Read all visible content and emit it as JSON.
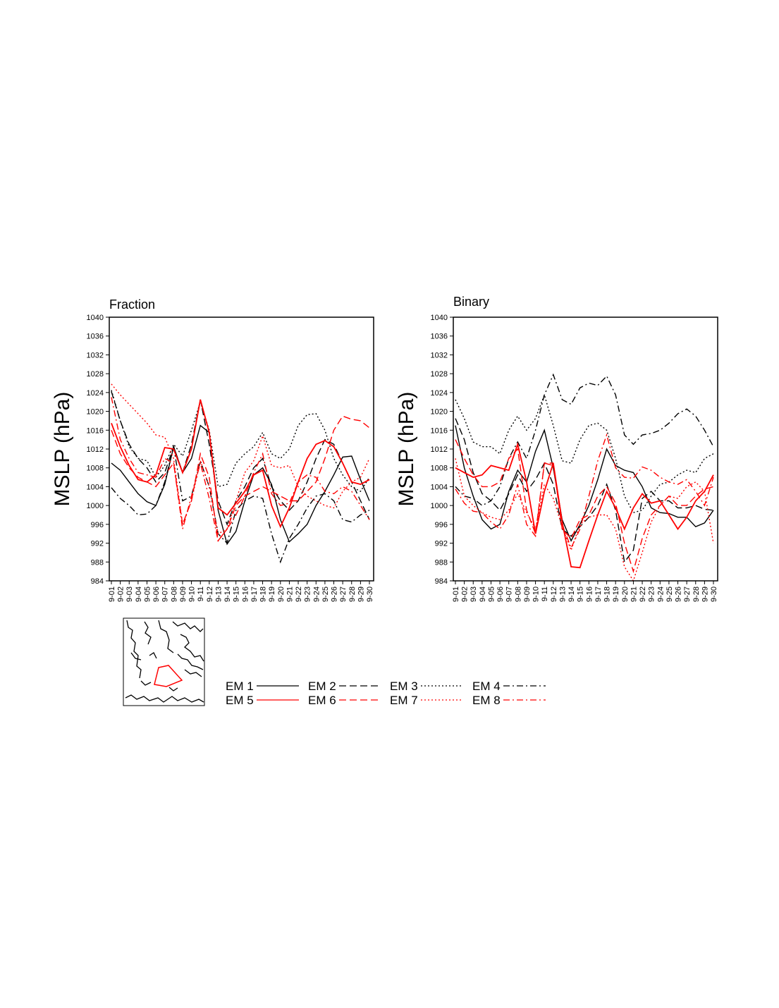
{
  "chart_data": [
    {
      "type": "line",
      "title": "Fraction",
      "ylabel": "MSLP (hPa)",
      "xlabel": "",
      "ylim": [
        984,
        1040
      ],
      "yticks": [
        984,
        988,
        992,
        996,
        1000,
        1004,
        1008,
        1012,
        1016,
        1020,
        1024,
        1028,
        1032,
        1036,
        1040
      ],
      "categories": [
        "9-01",
        "9-02",
        "9-03",
        "9-04",
        "9-05",
        "9-06",
        "9-07",
        "9-08",
        "9-09",
        "9-10",
        "9-11",
        "9-12",
        "9-13",
        "9-14",
        "9-15",
        "9-16",
        "9-17",
        "9-18",
        "9-19",
        "9-20",
        "9-21",
        "9-22",
        "9-23",
        "9-24",
        "9-25",
        "9-26",
        "9-27",
        "9-28",
        "9-29",
        "9-30"
      ],
      "grid": false,
      "series": [
        {
          "name": "EM 1",
          "values": [
            1009,
            1007.5,
            1005,
            1002.5,
            1000.8,
            1000,
            1004.5,
            1012.5,
            1007,
            1010,
            1017,
            1015.5,
            999,
            991.8,
            994.5,
            1001,
            1006.5,
            1008,
            1004.5,
            997,
            992.3,
            994,
            996,
            1000,
            1003,
            1006.5,
            1010.3,
            1010.5,
            1005.5,
            1001
          ]
        },
        {
          "name": "EM 2",
          "values": [
            1024.2,
            1018,
            1013,
            1010,
            1008,
            1005,
            1007,
            1012.5,
            1007,
            1013,
            1022.5,
            1013,
            1001,
            996,
            1001,
            1004,
            1008,
            1010,
            1004,
            1001,
            999,
            1001,
            1005,
            1010,
            1014,
            1013,
            1009,
            1005,
            1001,
            997
          ]
        },
        {
          "name": "EM 3",
          "values": [
            1024.5,
            1018,
            1012.5,
            1010,
            1009.5,
            1006,
            1008.5,
            1013,
            1010.5,
            1016,
            1022,
            1016,
            1004,
            1004.5,
            1009,
            1011,
            1012.5,
            1015.5,
            1011,
            1010,
            1012,
            1017,
            1019.3,
            1019.5,
            1016,
            1010,
            1006.5,
            1004,
            1003,
            1006
          ]
        },
        {
          "name": "EM 4",
          "values": [
            1003.8,
            1001.5,
            1000,
            998,
            998.2,
            1000,
            1005,
            1012.5,
            1001,
            1002,
            1009.5,
            1004,
            994,
            992,
            999,
            1001,
            1002,
            1001.5,
            994,
            988,
            993,
            996,
            999.5,
            1002,
            1002.5,
            1001,
            997,
            996.5,
            998,
            999
          ]
        },
        {
          "name": "EM 5",
          "values": [
            1017.5,
            1012.5,
            1008.5,
            1005.5,
            1005,
            1006.5,
            1012.3,
            1012,
            1007,
            1012,
            1022.5,
            1015.5,
            999.5,
            998,
            1000.5,
            1003,
            1006.5,
            1007.5,
            1000,
            995.5,
            999.5,
            1005,
            1010,
            1013,
            1013.8,
            1012.5,
            1009,
            1005,
            1004.5,
            1005.5
          ]
        },
        {
          "name": "EM 6",
          "values": [
            1016,
            1011,
            1008,
            1006,
            1005,
            1004,
            1006.5,
            1009,
            996,
            1001,
            1011,
            1006,
            992.5,
            995,
            1000,
            1002,
            1003,
            1004,
            1003,
            1002,
            1001,
            1001,
            1003,
            1005,
            1010,
            1016,
            1019,
            1018.3,
            1018,
            1016.5
          ]
        },
        {
          "name": "EM 7",
          "values": [
            1025.8,
            1023.5,
            1021.5,
            1019.5,
            1017.5,
            1015,
            1014.5,
            1010,
            996,
            1001,
            1009.5,
            1004,
            994,
            995,
            1001,
            1007,
            1009.5,
            1014.8,
            1008.5,
            1008,
            1008.5,
            1004,
            1002,
            1001,
            1000,
            999.5,
            1003,
            1005,
            1006,
            1010
          ]
        },
        {
          "name": "EM 8",
          "values": [
            1023,
            1014,
            1010,
            1007,
            1006.5,
            1006,
            1010,
            1009,
            995,
            1002,
            1009,
            1001.5,
            992.5,
            995,
            998,
            1002,
            1007,
            1011,
            1002.5,
            1000,
            1000.5,
            1005,
            1006.5,
            1006,
            1003,
            1002.5,
            1004,
            1003,
            1000,
            997
          ]
        }
      ]
    },
    {
      "type": "line",
      "title": "Binary",
      "ylabel": "MSLP (hPa)",
      "xlabel": "",
      "ylim": [
        984,
        1040
      ],
      "yticks": [
        984,
        988,
        992,
        996,
        1000,
        1004,
        1008,
        1012,
        1016,
        1020,
        1024,
        1028,
        1032,
        1036,
        1040
      ],
      "categories": [
        "9-01",
        "9-02",
        "9-03",
        "9-04",
        "9-05",
        "9-06",
        "9-07",
        "9-08",
        "9-09",
        "9-10",
        "9-11",
        "9-12",
        "9-13",
        "9-14",
        "9-15",
        "9-16",
        "9-17",
        "9-18",
        "9-19",
        "9-20",
        "9-21",
        "9-22",
        "9-23",
        "9-24",
        "9-25",
        "9-26",
        "9-27",
        "9-28",
        "9-29",
        "9-30"
      ],
      "grid": false,
      "series": [
        {
          "name": "EM 1",
          "values": [
            1017,
            1008,
            1002,
            997,
            995,
            996,
            1003,
            1007.5,
            1005,
            1011.5,
            1016,
            1008,
            997,
            992.5,
            996,
            1000,
            1005.5,
            1012,
            1008.5,
            1007.5,
            1007,
            1004,
            999.5,
            998.5,
            998.3,
            997.5,
            997.5,
            995.5,
            996.3,
            999
          ]
        },
        {
          "name": "EM 2",
          "values": [
            1018.5,
            1014,
            1007,
            1002.5,
            1001,
            999,
            1002.5,
            1006.5,
            1003,
            1005.5,
            1009,
            1004.5,
            995,
            993.5,
            995.5,
            997.5,
            1000,
            1004.5,
            999,
            988,
            990.5,
            1001.5,
            1003,
            1001,
            1001,
            999.5,
            999.5,
            1000,
            999.2,
            999
          ]
        },
        {
          "name": "EM 3",
          "values": [
            1022.5,
            1018.5,
            1013.5,
            1012.5,
            1012.5,
            1011,
            1016,
            1019,
            1016,
            1018.5,
            1023.5,
            1017,
            1009.5,
            1009,
            1014,
            1017,
            1017.5,
            1016,
            1010,
            1002,
            998.5,
            999,
            1002,
            1004.5,
            1005,
            1006.5,
            1007.5,
            1007,
            1010,
            1011
          ]
        },
        {
          "name": "EM 4",
          "values": [
            1004,
            1002,
            1001.5,
            1000,
            1001,
            1004,
            1010,
            1013.5,
            1010,
            1016,
            1023.5,
            1027.8,
            1022.5,
            1021.5,
            1025,
            1026,
            1025.5,
            1027.5,
            1023.5,
            1015,
            1013,
            1015,
            1015.3,
            1016,
            1017.5,
            1019.5,
            1020.5,
            1019,
            1016,
            1012.5
          ]
        },
        {
          "name": "EM 5",
          "values": [
            1008,
            1007,
            1006,
            1006.5,
            1008.5,
            1008,
            1007.5,
            1013,
            1005,
            994,
            1003,
            1009,
            996.5,
            987,
            986.8,
            992.5,
            998,
            1003,
            999.5,
            995,
            999.5,
            1002.5,
            1000.5,
            1001,
            998,
            995,
            997.5,
            1001,
            1003,
            1006.5
          ]
        },
        {
          "name": "EM 6",
          "values": [
            1014,
            1010,
            1006.5,
            1004,
            1004,
            1005,
            1010,
            1012,
            999,
            994,
            1009,
            1009,
            995,
            993,
            997,
            998,
            1002,
            1004,
            1000.5,
            992,
            986,
            993,
            998,
            1000,
            1002,
            1000,
            1000,
            1002,
            1003.5,
            1004
          ]
        },
        {
          "name": "EM 7",
          "values": [
            1010,
            1002,
            1000,
            998.5,
            997.5,
            997,
            999,
            1002.5,
            998.5,
            995,
            1004.5,
            1001.5,
            995.5,
            990.5,
            996,
            997.5,
            998,
            998,
            995,
            987,
            984,
            990,
            996.5,
            1000,
            1002,
            1001.5,
            1004,
            1005,
            1003,
            992
          ]
        },
        {
          "name": "EM 8",
          "values": [
            1003.5,
            1000.5,
            998.8,
            998.5,
            996.5,
            995,
            998,
            1004.5,
            996,
            993.5,
            1009,
            1008.5,
            996,
            991,
            995,
            1002,
            1009.5,
            1015,
            1008,
            1006,
            1005.8,
            1008.2,
            1007.5,
            1006,
            1005,
            1004.5,
            1005.5,
            1003,
            1000,
            1006
          ]
        }
      ]
    }
  ],
  "legend": {
    "entries": [
      "EM 1",
      "EM 2",
      "EM 3",
      "EM 4",
      "EM 5",
      "EM 6",
      "EM 7",
      "EM 8"
    ],
    "placement": "bottom",
    "colors": [
      "#000000",
      "#000000",
      "#000000",
      "#000000",
      "#ff0000",
      "#ff0000",
      "#ff0000",
      "#ff0000"
    ],
    "dash_styles": [
      "solid",
      "long-dash",
      "dotted",
      "dash-dot",
      "solid",
      "long-dash",
      "dotted",
      "dash-dot"
    ]
  },
  "inset_map": {
    "icon": "region-map-icon",
    "region_color": "#ff0000"
  },
  "colors": {
    "black": "#000000",
    "red": "#ff0000"
  }
}
